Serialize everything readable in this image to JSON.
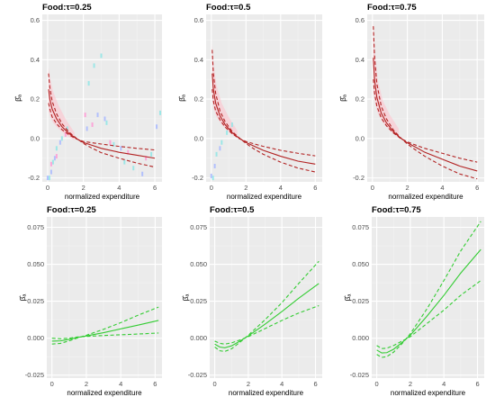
{
  "colors": {
    "panel_bg": "#ebebeb",
    "grid_major": "#ffffff",
    "grid_minor": "#f3f3f3",
    "tick_text": "#4d4d4d",
    "top_line": "#b22222",
    "top_band": "#ffc0cb",
    "bottom_line": "#33cc33",
    "scatter_pink": "#ff9ad5",
    "scatter_cyan": "#8fe6e6",
    "scatter_blue": "#a8b8ff"
  },
  "chart_data": [
    {
      "id": "top-left",
      "type": "line",
      "title": "Food:τ=0.25",
      "xlabel": "normalized expenditure",
      "ylabel": "β̂ₐ",
      "xlim": [
        -0.3,
        6.4
      ],
      "ylim": [
        -0.22,
        0.63
      ],
      "xticks": [
        0,
        2,
        4,
        6
      ],
      "xtick_labels": [
        "0",
        "2",
        "4",
        "6"
      ],
      "yticks": [
        -0.2,
        0.0,
        0.2,
        0.4,
        0.6
      ],
      "ytick_labels": [
        "-0.2",
        "0.0",
        "0.2",
        "0.4",
        "0.6"
      ],
      "series": [
        {
          "style": "solid",
          "color": "#b22222",
          "x": [
            0.05,
            0.12,
            0.25,
            0.5,
            0.8,
            1.2,
            1.6,
            2.0,
            2.5,
            3.0,
            4.0,
            5.0,
            6.0
          ],
          "y": [
            0.25,
            0.2,
            0.15,
            0.1,
            0.06,
            0.025,
            0.0,
            -0.02,
            -0.035,
            -0.05,
            -0.07,
            -0.085,
            -0.1
          ]
        },
        {
          "style": "dashed",
          "color": "#b22222",
          "x": [
            0.05,
            0.12,
            0.25,
            0.5,
            0.8,
            1.2,
            1.6,
            2.0,
            2.5,
            3.0,
            4.0,
            5.0,
            6.0
          ],
          "y": [
            0.33,
            0.26,
            0.19,
            0.125,
            0.075,
            0.032,
            0.002,
            -0.025,
            -0.05,
            -0.072,
            -0.1,
            -0.125,
            -0.145
          ]
        },
        {
          "style": "dashed",
          "color": "#b22222",
          "x": [
            0.05,
            0.12,
            0.25,
            0.5,
            0.8,
            1.2,
            1.6,
            2.0,
            2.5,
            3.0,
            4.0,
            5.0,
            6.0
          ],
          "y": [
            0.18,
            0.15,
            0.11,
            0.075,
            0.045,
            0.018,
            -0.002,
            -0.015,
            -0.022,
            -0.028,
            -0.04,
            -0.05,
            -0.058
          ]
        }
      ],
      "band": {
        "color": "#ffc0cb",
        "x": [
          0.05,
          0.15,
          0.3,
          0.6,
          1.0,
          1.5
        ],
        "upper": [
          0.36,
          0.3,
          0.24,
          0.17,
          0.1,
          0.03
        ],
        "lower": [
          0.14,
          0.11,
          0.08,
          0.05,
          0.02,
          -0.01
        ]
      },
      "scatter": [
        {
          "color": "#8fe6e6",
          "x": [
            0.1,
            0.3,
            0.5,
            0.8,
            1.1,
            2.3,
            2.6,
            3.0,
            3.3,
            3.7,
            4.3,
            4.8,
            5.8,
            6.3
          ],
          "y": [
            -0.2,
            -0.12,
            -0.05,
            0.0,
            0.05,
            0.28,
            0.37,
            0.42,
            0.08,
            -0.03,
            -0.12,
            -0.15,
            -0.08,
            0.13
          ]
        },
        {
          "color": "#a8b8ff",
          "x": [
            0.0,
            0.2,
            0.4,
            0.7,
            2.2,
            2.8,
            3.2,
            4.1,
            5.3,
            6.1
          ],
          "y": [
            -0.2,
            -0.17,
            -0.1,
            -0.02,
            0.05,
            0.12,
            0.1,
            -0.05,
            -0.18,
            0.06
          ]
        },
        {
          "color": "#ff9ad5",
          "x": [
            0.2,
            0.5,
            1.0,
            2.1,
            2.5,
            3.5,
            4.5,
            5.5
          ],
          "y": [
            -0.13,
            -0.09,
            0.02,
            0.12,
            0.07,
            -0.02,
            -0.07,
            -0.1
          ]
        }
      ]
    },
    {
      "id": "top-mid",
      "type": "line",
      "title": "Food:τ=0.5",
      "xlabel": "normalized expenditure",
      "ylabel": "β̂ₐ",
      "xlim": [
        -0.3,
        6.4
      ],
      "ylim": [
        -0.22,
        0.63
      ],
      "xticks": [
        0,
        2,
        4,
        6
      ],
      "xtick_labels": [
        "0",
        "2",
        "4",
        "6"
      ],
      "yticks": [
        -0.2,
        0.0,
        0.2,
        0.4,
        0.6
      ],
      "ytick_labels": [
        "-0.2",
        "0.0",
        "0.2",
        "0.4",
        "0.6"
      ],
      "series": [
        {
          "style": "solid",
          "color": "#b22222",
          "x": [
            0.05,
            0.12,
            0.25,
            0.5,
            0.8,
            1.2,
            1.6,
            2.0,
            2.5,
            3.0,
            4.0,
            5.0,
            6.0
          ],
          "y": [
            0.33,
            0.25,
            0.18,
            0.115,
            0.07,
            0.03,
            0.002,
            -0.02,
            -0.04,
            -0.06,
            -0.09,
            -0.115,
            -0.13
          ]
        },
        {
          "style": "dashed",
          "color": "#b22222",
          "x": [
            0.05,
            0.12,
            0.25,
            0.5,
            0.8,
            1.2,
            1.6,
            2.0,
            2.5,
            3.0,
            4.0,
            5.0,
            6.0
          ],
          "y": [
            0.45,
            0.33,
            0.23,
            0.14,
            0.085,
            0.036,
            0.004,
            -0.025,
            -0.055,
            -0.08,
            -0.12,
            -0.15,
            -0.17
          ]
        },
        {
          "style": "dashed",
          "color": "#b22222",
          "x": [
            0.05,
            0.12,
            0.25,
            0.5,
            0.8,
            1.2,
            1.6,
            2.0,
            2.5,
            3.0,
            4.0,
            5.0,
            6.0
          ],
          "y": [
            0.25,
            0.19,
            0.14,
            0.095,
            0.058,
            0.025,
            0.0,
            -0.015,
            -0.028,
            -0.04,
            -0.06,
            -0.075,
            -0.088
          ]
        }
      ],
      "band": {
        "color": "#ffc0cb",
        "x": [
          0.05,
          0.15,
          0.3,
          0.6,
          1.0,
          1.5
        ],
        "upper": [
          0.48,
          0.36,
          0.27,
          0.18,
          0.11,
          0.04
        ],
        "lower": [
          0.2,
          0.15,
          0.11,
          0.07,
          0.035,
          0.0
        ]
      },
      "scatter": [
        {
          "color": "#8fe6e6",
          "x": [
            0.1,
            0.3,
            0.6,
            0.9,
            1.2
          ],
          "y": [
            -0.2,
            -0.08,
            -0.02,
            0.03,
            0.07
          ]
        },
        {
          "color": "#a8b8ff",
          "x": [
            0.0,
            0.2,
            0.5
          ],
          "y": [
            -0.19,
            -0.14,
            -0.05
          ]
        }
      ]
    },
    {
      "id": "top-right",
      "type": "line",
      "title": "Food:τ=0.75",
      "xlabel": "normalized expenditure",
      "ylabel": "β̂ₐ",
      "xlim": [
        -0.3,
        6.4
      ],
      "ylim": [
        -0.22,
        0.63
      ],
      "xticks": [
        0,
        2,
        4,
        6
      ],
      "xtick_labels": [
        "0",
        "2",
        "4",
        "6"
      ],
      "yticks": [
        -0.2,
        0.0,
        0.2,
        0.4,
        0.6
      ],
      "ytick_labels": [
        "-0.2",
        "0.0",
        "0.2",
        "0.4",
        "0.6"
      ],
      "series": [
        {
          "style": "solid",
          "color": "#b22222",
          "x": [
            0.05,
            0.12,
            0.25,
            0.5,
            0.8,
            1.2,
            1.6,
            2.0,
            2.5,
            3.0,
            4.0,
            5.0,
            6.0
          ],
          "y": [
            0.41,
            0.3,
            0.21,
            0.13,
            0.08,
            0.035,
            0.003,
            -0.022,
            -0.045,
            -0.07,
            -0.105,
            -0.14,
            -0.165
          ]
        },
        {
          "style": "dashed",
          "color": "#b22222",
          "x": [
            0.05,
            0.12,
            0.25,
            0.5,
            0.8,
            1.2,
            1.6,
            2.0,
            2.5,
            3.0,
            4.0,
            5.0,
            6.0
          ],
          "y": [
            0.57,
            0.42,
            0.28,
            0.165,
            0.1,
            0.043,
            0.005,
            -0.028,
            -0.06,
            -0.09,
            -0.14,
            -0.18,
            -0.205
          ]
        },
        {
          "style": "dashed",
          "color": "#b22222",
          "x": [
            0.05,
            0.12,
            0.25,
            0.5,
            0.8,
            1.2,
            1.6,
            2.0,
            2.5,
            3.0,
            4.0,
            5.0,
            6.0
          ],
          "y": [
            0.3,
            0.23,
            0.165,
            0.105,
            0.065,
            0.028,
            0.001,
            -0.017,
            -0.034,
            -0.05,
            -0.075,
            -0.1,
            -0.12
          ]
        }
      ],
      "band": {
        "color": "#ffc0cb",
        "x": [
          0.05,
          0.15,
          0.3,
          0.6,
          1.0,
          1.5
        ],
        "upper": [
          0.6,
          0.43,
          0.3,
          0.19,
          0.12,
          0.05
        ],
        "lower": [
          0.24,
          0.18,
          0.13,
          0.08,
          0.04,
          0.005
        ]
      },
      "scatter": []
    },
    {
      "id": "bottom-left",
      "type": "line",
      "title": "Food:τ=0.25",
      "xlabel": "normalized expenditure",
      "ylabel": "β̂ₐ",
      "xlim": [
        -0.3,
        6.4
      ],
      "ylim": [
        -0.027,
        0.082
      ],
      "xticks": [
        0,
        2,
        4,
        6
      ],
      "xtick_labels": [
        "0",
        "2",
        "4",
        "6"
      ],
      "yticks": [
        -0.025,
        0.0,
        0.025,
        0.05,
        0.075
      ],
      "ytick_labels": [
        "-0.025",
        "0.000",
        "0.025",
        "0.050",
        "0.075"
      ],
      "series": [
        {
          "style": "solid",
          "color": "#33cc33",
          "x": [
            0.0,
            0.5,
            1.0,
            1.5,
            2.0,
            3.0,
            4.0,
            5.0,
            6.2
          ],
          "y": [
            -0.002,
            -0.0018,
            -0.0008,
            0.0005,
            0.0015,
            0.0037,
            0.0063,
            0.0088,
            0.012
          ]
        },
        {
          "style": "dashed",
          "color": "#33cc33",
          "x": [
            0.0,
            0.5,
            1.0,
            1.5,
            2.0,
            3.0,
            4.0,
            5.0,
            6.2
          ],
          "y": [
            -0.004,
            -0.0035,
            -0.0018,
            0.0002,
            0.002,
            0.006,
            0.0105,
            0.0155,
            0.021
          ]
        },
        {
          "style": "dashed",
          "color": "#33cc33",
          "x": [
            0.0,
            0.5,
            1.0,
            1.5,
            2.0,
            3.0,
            4.0,
            5.0,
            6.2
          ],
          "y": [
            0.0,
            -0.0004,
            0.0,
            0.0008,
            0.0012,
            0.0018,
            0.0023,
            0.0028,
            0.0035
          ]
        }
      ],
      "scatter": []
    },
    {
      "id": "bottom-mid",
      "type": "line",
      "title": "Food:τ=0.5",
      "xlabel": "normalized expenditure",
      "ylabel": "β̂ₐ",
      "xlim": [
        -0.3,
        6.4
      ],
      "ylim": [
        -0.027,
        0.082
      ],
      "xticks": [
        0,
        2,
        4,
        6
      ],
      "xtick_labels": [
        "0",
        "2",
        "4",
        "6"
      ],
      "yticks": [
        -0.025,
        0.0,
        0.025,
        0.05,
        0.075
      ],
      "ytick_labels": [
        "-0.025",
        "0.000",
        "0.025",
        "0.050",
        "0.075"
      ],
      "series": [
        {
          "style": "solid",
          "color": "#33cc33",
          "x": [
            0.0,
            0.3,
            0.6,
            1.0,
            1.5,
            2.0,
            3.0,
            4.0,
            5.0,
            6.2
          ],
          "y": [
            -0.004,
            -0.006,
            -0.0065,
            -0.0052,
            -0.002,
            0.0015,
            0.0095,
            0.018,
            0.027,
            0.037
          ]
        },
        {
          "style": "dashed",
          "color": "#33cc33",
          "x": [
            0.0,
            0.3,
            0.6,
            1.0,
            1.5,
            2.0,
            3.0,
            4.0,
            5.0,
            6.2
          ],
          "y": [
            -0.006,
            -0.0085,
            -0.009,
            -0.0072,
            -0.0028,
            0.002,
            0.0125,
            0.024,
            0.037,
            0.052
          ]
        },
        {
          "style": "dashed",
          "color": "#33cc33",
          "x": [
            0.0,
            0.3,
            0.6,
            1.0,
            1.5,
            2.0,
            3.0,
            4.0,
            5.0,
            6.2
          ],
          "y": [
            -0.002,
            -0.0035,
            -0.004,
            -0.0032,
            -0.0012,
            0.001,
            0.0065,
            0.012,
            0.017,
            0.022
          ]
        }
      ],
      "scatter": []
    },
    {
      "id": "bottom-right",
      "type": "line",
      "title": "Food:τ=0.75",
      "xlabel": "normalized expenditure",
      "ylabel": "β̂ₐ",
      "xlim": [
        -0.3,
        6.4
      ],
      "ylim": [
        -0.027,
        0.082
      ],
      "xticks": [
        0,
        2,
        4,
        6
      ],
      "xtick_labels": [
        "0",
        "2",
        "4",
        "6"
      ],
      "yticks": [
        -0.025,
        0.0,
        0.025,
        0.05,
        0.075
      ],
      "ytick_labels": [
        "-0.025",
        "0.000",
        "0.025",
        "0.050",
        "0.075"
      ],
      "series": [
        {
          "style": "solid",
          "color": "#33cc33",
          "x": [
            0.0,
            0.3,
            0.6,
            1.0,
            1.5,
            2.0,
            3.0,
            4.0,
            5.0,
            6.2
          ],
          "y": [
            -0.008,
            -0.01,
            -0.0098,
            -0.0075,
            -0.003,
            0.002,
            0.015,
            0.029,
            0.044,
            0.06
          ]
        },
        {
          "style": "dashed",
          "color": "#33cc33",
          "x": [
            0.0,
            0.3,
            0.6,
            1.0,
            1.5,
            2.0,
            3.0,
            4.0,
            5.0,
            6.2
          ],
          "y": [
            -0.011,
            -0.013,
            -0.0125,
            -0.0095,
            -0.0038,
            0.003,
            0.02,
            0.039,
            0.059,
            0.079
          ]
        },
        {
          "style": "dashed",
          "color": "#33cc33",
          "x": [
            0.0,
            0.3,
            0.6,
            1.0,
            1.5,
            2.0,
            3.0,
            4.0,
            5.0,
            6.2
          ],
          "y": [
            -0.005,
            -0.007,
            -0.0068,
            -0.005,
            -0.002,
            0.001,
            0.01,
            0.019,
            0.029,
            0.039
          ]
        }
      ],
      "scatter": []
    }
  ]
}
